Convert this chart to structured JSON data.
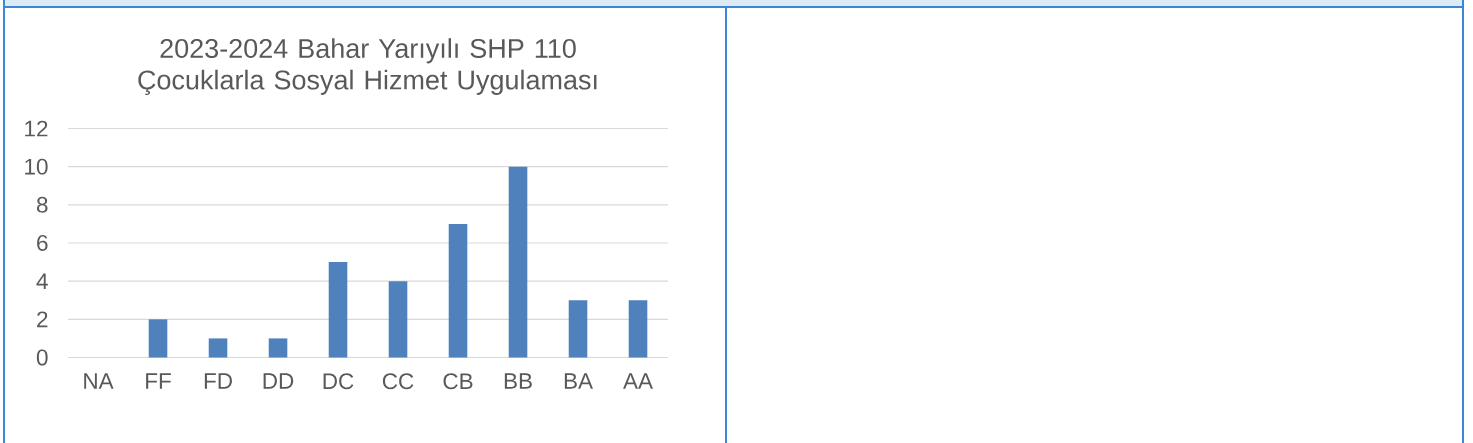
{
  "chart_data": {
    "type": "bar",
    "title": "2023-2024 Bahar Yarıyılı SHP 110 Çocuklarla Sosyal Hizmet Uygulaması",
    "categories": [
      "NA",
      "FF",
      "FD",
      "DD",
      "DC",
      "CC",
      "CB",
      "BB",
      "BA",
      "AA"
    ],
    "values": [
      0,
      2,
      1,
      1,
      5,
      4,
      7,
      10,
      3,
      3
    ],
    "color": "#4f81bd",
    "ylim": [
      0,
      12
    ],
    "yticks": [
      0,
      2,
      4,
      6,
      8,
      10,
      12
    ],
    "grid": "y"
  }
}
